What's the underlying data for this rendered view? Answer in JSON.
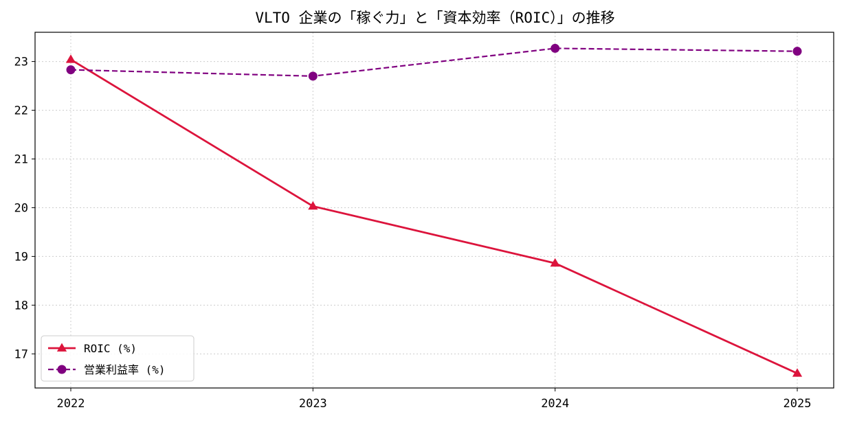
{
  "chart_data": {
    "type": "line",
    "title": "VLTO 企業の「稼ぐ力」と「資本効率（ROIC）」の推移",
    "xlabel": "",
    "ylabel": "",
    "categories": [
      "2022",
      "2023",
      "2024",
      "2025"
    ],
    "ylim": [
      16.3,
      23.6
    ],
    "yticks": [
      17,
      18,
      19,
      20,
      21,
      22,
      23
    ],
    "grid": true,
    "legend_position": "lower-left",
    "series": [
      {
        "name": "ROIC (%)",
        "values": [
          23.04,
          20.03,
          18.86,
          16.6
        ],
        "color": "#dc143c",
        "line_style": "solid",
        "marker": "triangle"
      },
      {
        "name": "営業利益率 (%)",
        "values": [
          22.83,
          22.7,
          23.27,
          23.21
        ],
        "color": "#800080",
        "line_style": "dashed",
        "marker": "circle"
      }
    ]
  }
}
